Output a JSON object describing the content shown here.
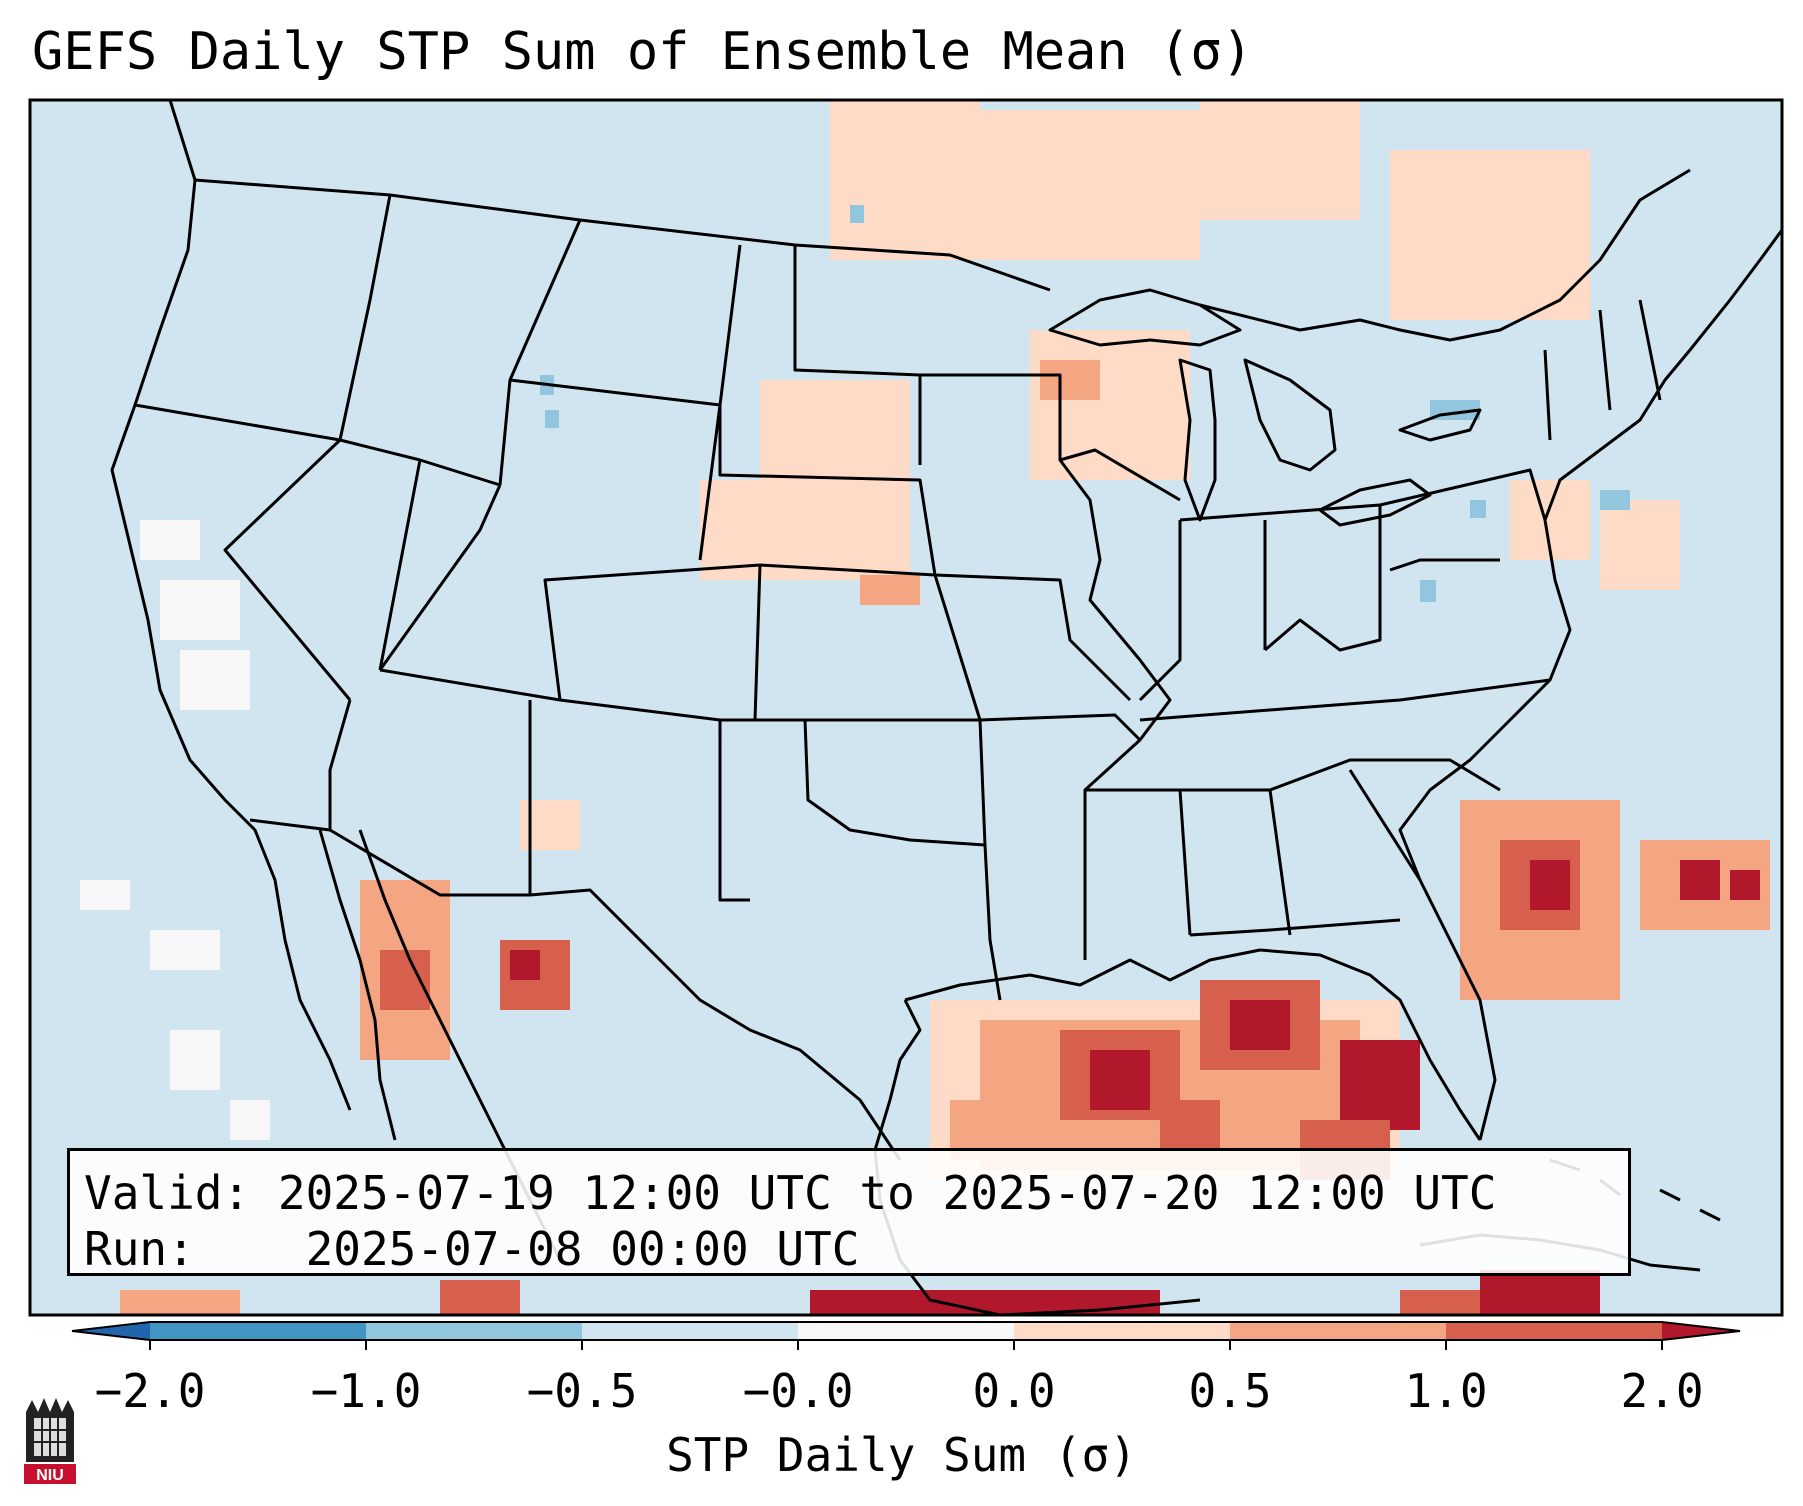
{
  "title": "GEFS Daily STP Sum of Ensemble Mean (σ)",
  "info": {
    "valid_label": "Valid:",
    "valid_value": "2025-07-19 12:00 UTC to 2025-07-20 12:00 UTC",
    "run_label": "Run:",
    "run_value": "2025-07-08 00:00 UTC"
  },
  "colorbar": {
    "title": "STP Daily Sum (σ)",
    "ticks": [
      "−2.0",
      "−1.0",
      "−0.5",
      "−0.0",
      "0.0",
      "0.5",
      "1.0",
      "2.0"
    ],
    "colors": {
      "extend_low": "#2166ac",
      "b1": "#4393c3",
      "b2": "#92c5de",
      "b3": "#d1e5f0",
      "b4": "#f7f7f7",
      "b5": "#fddbc7",
      "b6": "#f4a582",
      "b7": "#d6604d",
      "extend_high": "#b2182b"
    }
  },
  "logo": {
    "text": "NIU"
  },
  "map": {
    "background_color": "#d1e5f0",
    "border_color": "#000000"
  }
}
